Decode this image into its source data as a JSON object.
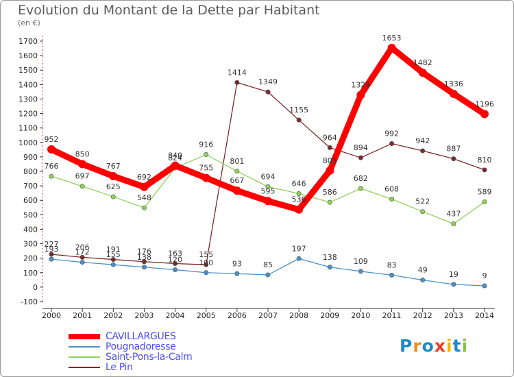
{
  "header": {
    "title": "Evolution du Montant de la Dette par Habitant",
    "unit": "(en €)"
  },
  "logo": {
    "text": "Proxiti",
    "colors": [
      "#1e88c8",
      "#f08c1e",
      "#1e88c8",
      "#e8401c",
      "#f4b400",
      "#1e88c8",
      "#8bc34a"
    ]
  },
  "chart_data": {
    "type": "line",
    "x": [
      2000,
      2001,
      2002,
      2003,
      2004,
      2005,
      2006,
      2007,
      2008,
      2009,
      2010,
      2011,
      2012,
      2013,
      2014
    ],
    "ylim": [
      -100,
      1700
    ],
    "yticks": [
      -100,
      0,
      100,
      200,
      300,
      400,
      500,
      600,
      700,
      800,
      900,
      1000,
      1100,
      1200,
      1300,
      1400,
      1500,
      1600,
      1700
    ],
    "grid": false,
    "legend_position": "bottom-left",
    "series": [
      {
        "name": "CAVILLARGUES",
        "color": "#ff0000",
        "values": [
          952,
          850,
          767,
          692,
          840,
          755,
          667,
          595,
          536,
          805,
          1328,
          1653,
          1482,
          1336,
          1196
        ]
      },
      {
        "name": "Pougnadoresse",
        "color": "#4a90c8",
        "values": [
          193,
          172,
          155,
          138,
          120,
          100,
          93,
          85,
          197,
          138,
          109,
          83,
          49,
          19,
          9
        ]
      },
      {
        "name": "Saint-Pons-la-Calm",
        "color": "#8fd15a",
        "values": [
          766,
          697,
          625,
          548,
          824,
          916,
          801,
          694,
          646,
          586,
          682,
          608,
          522,
          437,
          589
        ]
      },
      {
        "name": "Le Pin",
        "color": "#7a2a2a",
        "values": [
          227,
          206,
          191,
          176,
          163,
          155,
          1414,
          1349,
          1155,
          964,
          894,
          992,
          942,
          887,
          810
        ]
      }
    ]
  }
}
